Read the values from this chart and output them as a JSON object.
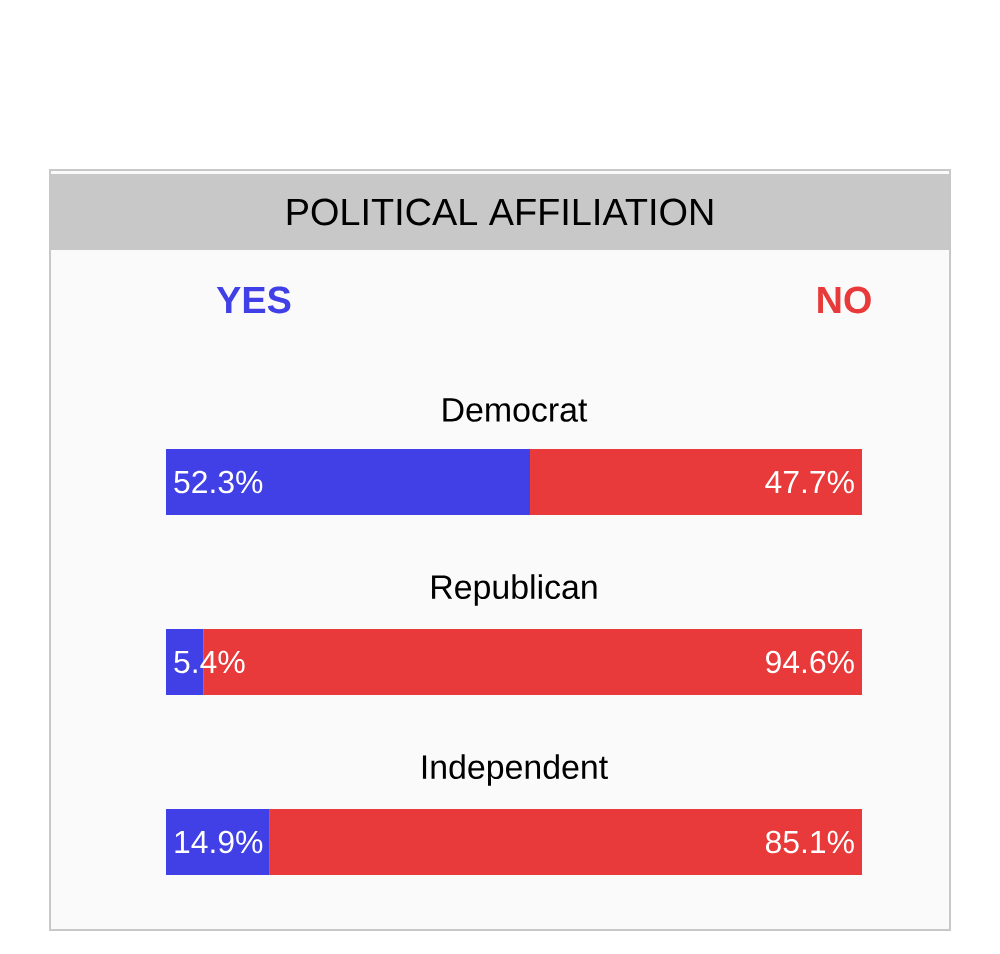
{
  "chart_data": {
    "type": "bar",
    "title": "POLITICAL AFFILIATION",
    "orientation": "horizontal",
    "stacked": true,
    "legend": "top",
    "categories": [
      "Democrat",
      "Republican",
      "Independent"
    ],
    "series": [
      {
        "name": "YES",
        "color": "#4040e6",
        "values": [
          52.3,
          5.4,
          14.9
        ],
        "value_labels": [
          "52.3%",
          "5.4%",
          "14.9%"
        ]
      },
      {
        "name": "NO",
        "color": "#e83a3a",
        "values": [
          47.7,
          94.6,
          85.1
        ],
        "value_labels": [
          "47.7%",
          "94.6%",
          "85.1%"
        ]
      }
    ]
  }
}
